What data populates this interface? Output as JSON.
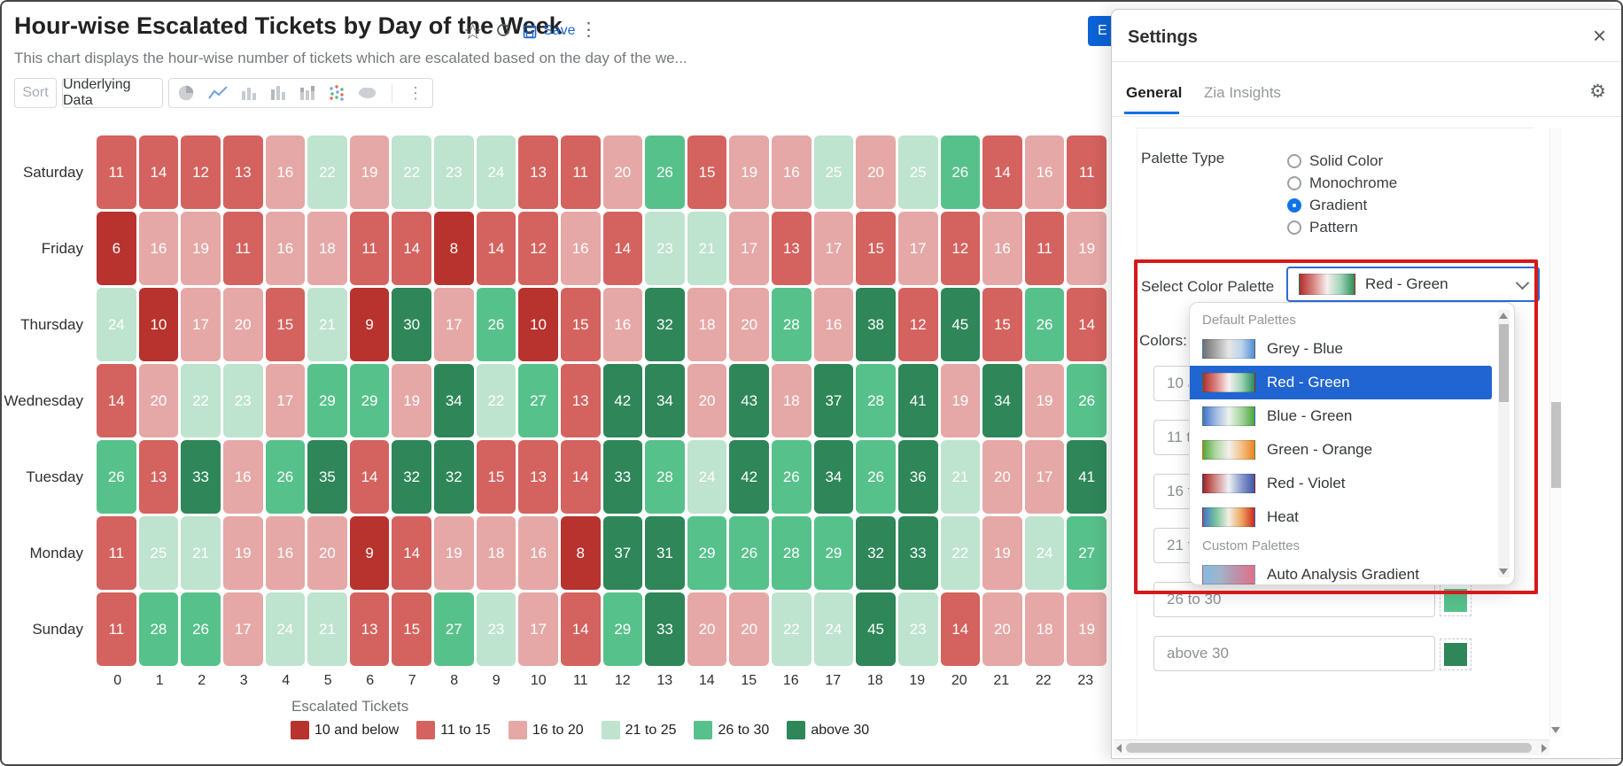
{
  "header": {
    "title": "Hour-wise Escalated Tickets by Day of the Week",
    "subtitle": "This chart displays the hour-wise number of tickets which are escalated based on the day of the we...",
    "save_label": "Save",
    "edit_button_label": "E"
  },
  "toolbar": {
    "sort_label": "Sort",
    "underlying_data_label": "Underlying Data"
  },
  "chart_data": {
    "type": "heatmap",
    "x": [
      0,
      1,
      2,
      3,
      4,
      5,
      6,
      7,
      8,
      9,
      10,
      11,
      12,
      13,
      14,
      15,
      16,
      17,
      18,
      19,
      20,
      21,
      22,
      23
    ],
    "xlabel": "Escalated Tickets",
    "rows": [
      "Saturday",
      "Friday",
      "Thursday",
      "Wednesday",
      "Tuesday",
      "Monday",
      "Sunday"
    ],
    "series": [
      {
        "name": "Saturday",
        "values": [
          11,
          14,
          12,
          13,
          16,
          22,
          19,
          22,
          23,
          24,
          13,
          11,
          20,
          26,
          15,
          19,
          16,
          25,
          20,
          25,
          26,
          14,
          16,
          11
        ]
      },
      {
        "name": "Friday",
        "values": [
          6,
          16,
          19,
          11,
          16,
          18,
          11,
          14,
          8,
          14,
          12,
          16,
          14,
          23,
          21,
          17,
          13,
          17,
          15,
          17,
          12,
          16,
          11,
          19
        ]
      },
      {
        "name": "Thursday",
        "values": [
          24,
          10,
          17,
          20,
          15,
          21,
          9,
          30,
          17,
          26,
          10,
          15,
          16,
          32,
          18,
          20,
          28,
          16,
          38,
          12,
          45,
          15,
          26,
          14
        ]
      },
      {
        "name": "Wednesday",
        "values": [
          14,
          20,
          22,
          23,
          17,
          29,
          29,
          19,
          34,
          22,
          27,
          13,
          42,
          34,
          20,
          43,
          18,
          37,
          28,
          41,
          19,
          34,
          19,
          26
        ]
      },
      {
        "name": "Tuesday",
        "values": [
          26,
          13,
          33,
          16,
          26,
          35,
          14,
          32,
          32,
          15,
          13,
          14,
          33,
          28,
          24,
          42,
          26,
          34,
          26,
          36,
          21,
          20,
          17,
          41
        ]
      },
      {
        "name": "Monday",
        "values": [
          11,
          25,
          21,
          19,
          16,
          20,
          9,
          14,
          19,
          18,
          16,
          8,
          37,
          31,
          29,
          26,
          28,
          29,
          32,
          33,
          22,
          19,
          24,
          27
        ]
      },
      {
        "name": "Sunday",
        "values": [
          11,
          28,
          26,
          17,
          24,
          21,
          13,
          15,
          27,
          23,
          17,
          14,
          29,
          33,
          20,
          20,
          22,
          24,
          45,
          23,
          14,
          20,
          18,
          19
        ]
      }
    ],
    "legend": [
      {
        "label": "10 and below",
        "color": "#b8322e"
      },
      {
        "label": "11 to 15",
        "color": "#d4625e"
      },
      {
        "label": "16 to 20",
        "color": "#e5a8a6"
      },
      {
        "label": "21 to 25",
        "color": "#bee3cf"
      },
      {
        "label": "26 to 30",
        "color": "#57c18b"
      },
      {
        "label": "above 30",
        "color": "#2e8659"
      }
    ],
    "legend_position": "bottom",
    "grid": false
  },
  "settings": {
    "title": "Settings",
    "close_label": "×",
    "tabs": {
      "general": "General",
      "zia": "Zia Insights"
    },
    "active_tab": "General",
    "palette_type": {
      "label": "Palette Type",
      "options": [
        "Solid Color",
        "Monochrome",
        "Gradient",
        "Pattern"
      ],
      "selected": "Gradient"
    },
    "palette_select": {
      "label": "Select Color Palette",
      "value": "Red - Green",
      "stops": [
        "#b02f2c",
        "#d88582",
        "#f7efee",
        "#9fd4b8",
        "#2e8b57"
      ]
    },
    "colors_label": "Colors:",
    "color_rows": [
      {
        "label": "10 and below",
        "color": "#b8322e"
      },
      {
        "label": "11 to 15",
        "color": "#d4625e"
      },
      {
        "label": "16 to 20",
        "color": "#e5a8a6"
      },
      {
        "label": "21 to 25",
        "color": "#bee3cf"
      },
      {
        "label": "26 to 30",
        "color": "#57c18b"
      },
      {
        "label": "above 30",
        "color": "#2e8659"
      }
    ],
    "dropdown": {
      "selected_bg": "#2065d1",
      "groups": [
        {
          "header": "Default Palettes",
          "items": [
            {
              "name": "Grey - Blue",
              "selected": false,
              "stops": [
                "#707070",
                "#a8a8a8",
                "#e6e6e6",
                "#bdd3ec",
                "#4f8fd6"
              ]
            },
            {
              "name": "Red - Green",
              "selected": true,
              "stops": [
                "#b02f2c",
                "#d88582",
                "#f7efee",
                "#9fd4b8",
                "#2e8b57"
              ]
            },
            {
              "name": "Blue - Green",
              "selected": false,
              "stops": [
                "#4273c9",
                "#9fb9e2",
                "#eef2ee",
                "#a4d49c",
                "#49a63c"
              ]
            },
            {
              "name": "Green - Orange",
              "selected": false,
              "stops": [
                "#55a63a",
                "#b2d8a4",
                "#f3f1ec",
                "#f3c188",
                "#ec8420"
              ]
            },
            {
              "name": "Red - Violet",
              "selected": false,
              "stops": [
                "#a32321",
                "#d18c89",
                "#eef0f5",
                "#8b9bcb",
                "#3e58a8"
              ]
            },
            {
              "name": "Heat",
              "selected": false,
              "stops": [
                "#4273c9",
                "#79c49d",
                "#f2efe4",
                "#efa55e",
                "#c92a20"
              ]
            }
          ]
        },
        {
          "header": "Custom Palettes",
          "items": [
            {
              "name": "Auto Analysis Gradient",
              "selected": false,
              "stops": [
                "#85b9e2",
                "#a2b4c8",
                "#c08fa8",
                "#de7188"
              ]
            }
          ]
        }
      ]
    },
    "annotation_color": "#d61a19",
    "accent_color": "#1173e6"
  }
}
